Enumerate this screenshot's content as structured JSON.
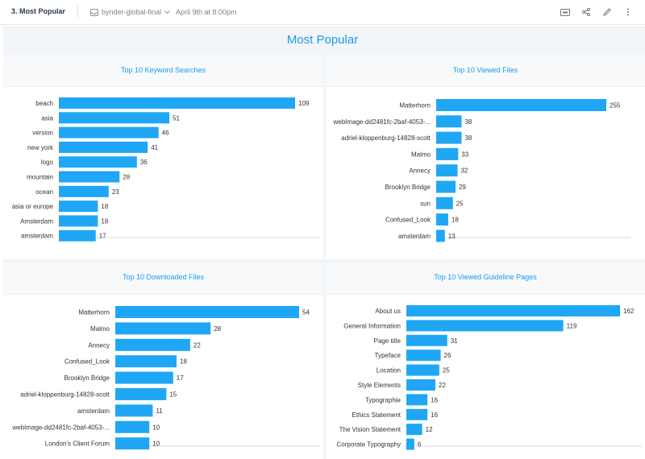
{
  "header": {
    "title": "3. Most Popular",
    "source_label": "bynder-global-final",
    "date_label": "April 9th at 8:00pm",
    "icons": [
      "presentation-icon",
      "share-icon",
      "edit-icon",
      "more-icon"
    ]
  },
  "dashboard": {
    "title": "Most Popular"
  },
  "colors": {
    "bar": "#1fa7f5",
    "title": "#1a9bf0"
  },
  "chart_data": [
    {
      "type": "bar",
      "orientation": "horizontal",
      "title": "Top 10 Keyword Searches",
      "categories": [
        "beach",
        "asia",
        "version",
        "new york",
        "logo",
        "mountain",
        "ocean",
        "asia or europe",
        "Amsterdam",
        "amsterdam"
      ],
      "values": [
        109,
        51,
        46,
        41,
        36,
        28,
        23,
        18,
        18,
        17
      ],
      "xlim": [
        0,
        109
      ]
    },
    {
      "type": "bar",
      "orientation": "horizontal",
      "title": "Top 10 Viewed Files",
      "categories": [
        "Matterhorn",
        "webImage-dd2481fc-2baf-4053-...",
        "adriel-kloppenburg-14828-scott",
        "Malmo",
        "Annecy",
        "Brooklyn Bridge",
        "sun",
        "Confused_Look",
        "amsterdam"
      ],
      "values": [
        255,
        38,
        38,
        33,
        32,
        29,
        25,
        18,
        13
      ],
      "xlim": [
        0,
        255
      ]
    },
    {
      "type": "bar",
      "orientation": "horizontal",
      "title": "Top 10 Downloaded Files",
      "categories": [
        "Matterhorn",
        "Malmo",
        "Annecy",
        "Confused_Look",
        "Brooklyn Bridge",
        "adriel-kloppenburg-14828-scott",
        "amsterdam",
        "webImage-dd2481fc-2baf-4053-...",
        "London's Client Forum"
      ],
      "values": [
        54,
        28,
        22,
        18,
        17,
        15,
        11,
        10,
        10
      ],
      "xlim": [
        0,
        54
      ]
    },
    {
      "type": "bar",
      "orientation": "horizontal",
      "title": "Top 10 Viewed Guideline Pages",
      "categories": [
        "About us",
        "General Information",
        "Page title",
        "Typeface",
        "Location",
        "Style Elements",
        "Typographie",
        "Ethics Statement",
        "The Vision Statement",
        "Corporate Typography"
      ],
      "values": [
        162,
        119,
        31,
        26,
        25,
        22,
        16,
        16,
        12,
        6
      ],
      "xlim": [
        0,
        162
      ]
    }
  ]
}
